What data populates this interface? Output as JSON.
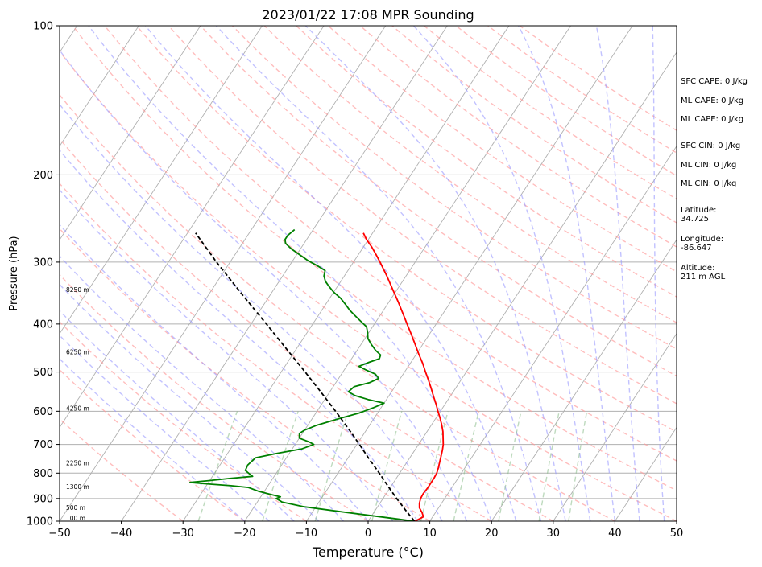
{
  "chart_data": {
    "type": "line",
    "title": "2023/01/22 17:08 MPR Sounding",
    "xlabel": "Temperature (°C)",
    "ylabel": "Pressure (hPa)",
    "xlim": [
      -50,
      50
    ],
    "ylim": [
      1000,
      100
    ],
    "y_scale": "log",
    "skew": "skew-T log-P",
    "grid": true,
    "x_ticks": [
      "−50",
      "−40",
      "−30",
      "−20",
      "−10",
      "0",
      "10",
      "20",
      "30",
      "40",
      "50"
    ],
    "x_tick_values": [
      -50,
      -40,
      -30,
      -20,
      -10,
      0,
      10,
      20,
      30,
      40,
      50
    ],
    "y_ticks": [
      "1000",
      "900",
      "800",
      "700",
      "600",
      "500",
      "400",
      "300",
      "200",
      "100"
    ],
    "y_tick_values": [
      1000,
      900,
      800,
      700,
      600,
      500,
      400,
      300,
      200,
      100
    ],
    "series": [
      {
        "role": "temperature",
        "color": "#ff0000",
        "points": [
          [
            1000,
            7.6
          ],
          [
            980,
            8.5
          ],
          [
            960,
            7.8
          ],
          [
            940,
            6.9
          ],
          [
            920,
            6.4
          ],
          [
            900,
            6.1
          ],
          [
            880,
            6.0
          ],
          [
            860,
            6.1
          ],
          [
            840,
            6.1
          ],
          [
            820,
            6.1
          ],
          [
            800,
            6.0
          ],
          [
            780,
            5.7
          ],
          [
            760,
            5.3
          ],
          [
            740,
            4.9
          ],
          [
            720,
            4.5
          ],
          [
            700,
            4.0
          ],
          [
            680,
            3.3
          ],
          [
            660,
            2.6
          ],
          [
            640,
            1.7
          ],
          [
            620,
            0.7
          ],
          [
            600,
            -0.4
          ],
          [
            580,
            -1.5
          ],
          [
            560,
            -2.7
          ],
          [
            540,
            -3.9
          ],
          [
            520,
            -5.2
          ],
          [
            500,
            -6.6
          ],
          [
            480,
            -8.0
          ],
          [
            460,
            -9.6
          ],
          [
            440,
            -11.2
          ],
          [
            420,
            -12.9
          ],
          [
            400,
            -14.7
          ],
          [
            380,
            -16.6
          ],
          [
            360,
            -18.6
          ],
          [
            340,
            -20.8
          ],
          [
            320,
            -23.1
          ],
          [
            300,
            -25.7
          ],
          [
            290,
            -27.1
          ],
          [
            280,
            -28.6
          ],
          [
            270,
            -30.3
          ],
          [
            262,
            -31.5
          ]
        ]
      },
      {
        "role": "dewpoint",
        "color": "#008000",
        "points": [
          [
            1000,
            7.4
          ],
          [
            990,
            4.5
          ],
          [
            975,
            0.0
          ],
          [
            955,
            -6.0
          ],
          [
            935,
            -12.0
          ],
          [
            915,
            -16.0
          ],
          [
            900,
            -17.3
          ],
          [
            893,
            -16.8
          ],
          [
            884,
            -18.5
          ],
          [
            870,
            -21.0
          ],
          [
            855,
            -23.0
          ],
          [
            848,
            -26.0
          ],
          [
            842,
            -29.5
          ],
          [
            835,
            -33.0
          ],
          [
            828,
            -30.0
          ],
          [
            820,
            -27.0
          ],
          [
            812,
            -23.5
          ],
          [
            800,
            -24.5
          ],
          [
            790,
            -25.3
          ],
          [
            770,
            -25.5
          ],
          [
            745,
            -25.0
          ],
          [
            730,
            -22.0
          ],
          [
            715,
            -18.5
          ],
          [
            700,
            -17.0
          ],
          [
            692,
            -18.0
          ],
          [
            680,
            -20.0
          ],
          [
            665,
            -20.5
          ],
          [
            655,
            -20.0
          ],
          [
            640,
            -18.5
          ],
          [
            620,
            -15.5
          ],
          [
            605,
            -13.0
          ],
          [
            590,
            -11.2
          ],
          [
            578,
            -10.0
          ],
          [
            568,
            -13.0
          ],
          [
            558,
            -15.5
          ],
          [
            548,
            -17.0
          ],
          [
            535,
            -16.6
          ],
          [
            525,
            -14.5
          ],
          [
            515,
            -13.5
          ],
          [
            505,
            -14.5
          ],
          [
            495,
            -16.5
          ],
          [
            487,
            -18.0
          ],
          [
            478,
            -16.8
          ],
          [
            470,
            -15.5
          ],
          [
            462,
            -15.7
          ],
          [
            452,
            -17.0
          ],
          [
            440,
            -18.3
          ],
          [
            428,
            -19.5
          ],
          [
            416,
            -20.2
          ],
          [
            405,
            -21.0
          ],
          [
            395,
            -22.5
          ],
          [
            385,
            -24.0
          ],
          [
            375,
            -25.5
          ],
          [
            365,
            -26.8
          ],
          [
            355,
            -28.2
          ],
          [
            345,
            -30.0
          ],
          [
            335,
            -31.5
          ],
          [
            328,
            -32.5
          ],
          [
            320,
            -33.3
          ],
          [
            312,
            -33.7
          ],
          [
            305,
            -35.5
          ],
          [
            298,
            -37.5
          ],
          [
            290,
            -39.5
          ],
          [
            282,
            -41.5
          ],
          [
            275,
            -43.0
          ],
          [
            270,
            -43.5
          ],
          [
            265,
            -43.5
          ],
          [
            258,
            -43.0
          ]
        ]
      },
      {
        "role": "parcel",
        "color": "#000000",
        "dashed": true,
        "points": [
          [
            1000,
            7.5
          ],
          [
            950,
            4.9
          ],
          [
            900,
            2.2
          ],
          [
            850,
            -0.5
          ],
          [
            800,
            -3.3
          ],
          [
            750,
            -6.4
          ],
          [
            700,
            -9.6
          ],
          [
            650,
            -13.1
          ],
          [
            600,
            -17.0
          ],
          [
            550,
            -21.3
          ],
          [
            500,
            -26.1
          ],
          [
            450,
            -31.5
          ],
          [
            400,
            -37.5
          ],
          [
            350,
            -44.4
          ],
          [
            300,
            -52.2
          ],
          [
            262,
            -58.7
          ]
        ]
      }
    ],
    "height_labels": [
      {
        "label": "100 m",
        "p": 1000
      },
      {
        "label": "500 m",
        "p": 953
      },
      {
        "label": "1300 m",
        "p": 864
      },
      {
        "label": "2250 m",
        "p": 774
      },
      {
        "label": "4250 m",
        "p": 600
      },
      {
        "label": "6250 m",
        "p": 462
      },
      {
        "label": "8250 m",
        "p": 346
      }
    ],
    "side_text": [
      "SFC CAPE: 0 J/kg",
      "ML CAPE: 0 J/kg",
      "ML CAPE: 0 J/kg",
      "SFC CIN: 0 J/kg",
      "ML CIN: 0 J/kg",
      "ML CIN: 0 J/kg",
      "Latitude:",
      "34.725",
      "Longitude:",
      "-86.647",
      "Altitude:",
      "211 m AGL"
    ],
    "reference_lines": {
      "isotherms": {
        "color": "#b0b0b0",
        "step": 10
      },
      "dry_adiabats": {
        "color": "#ff9999",
        "dashed": true
      },
      "moist_adiabats": {
        "color": "#9999ff",
        "dashed": true
      },
      "mixing_ratio": {
        "color": "#99cc99",
        "dashed": true
      }
    }
  }
}
